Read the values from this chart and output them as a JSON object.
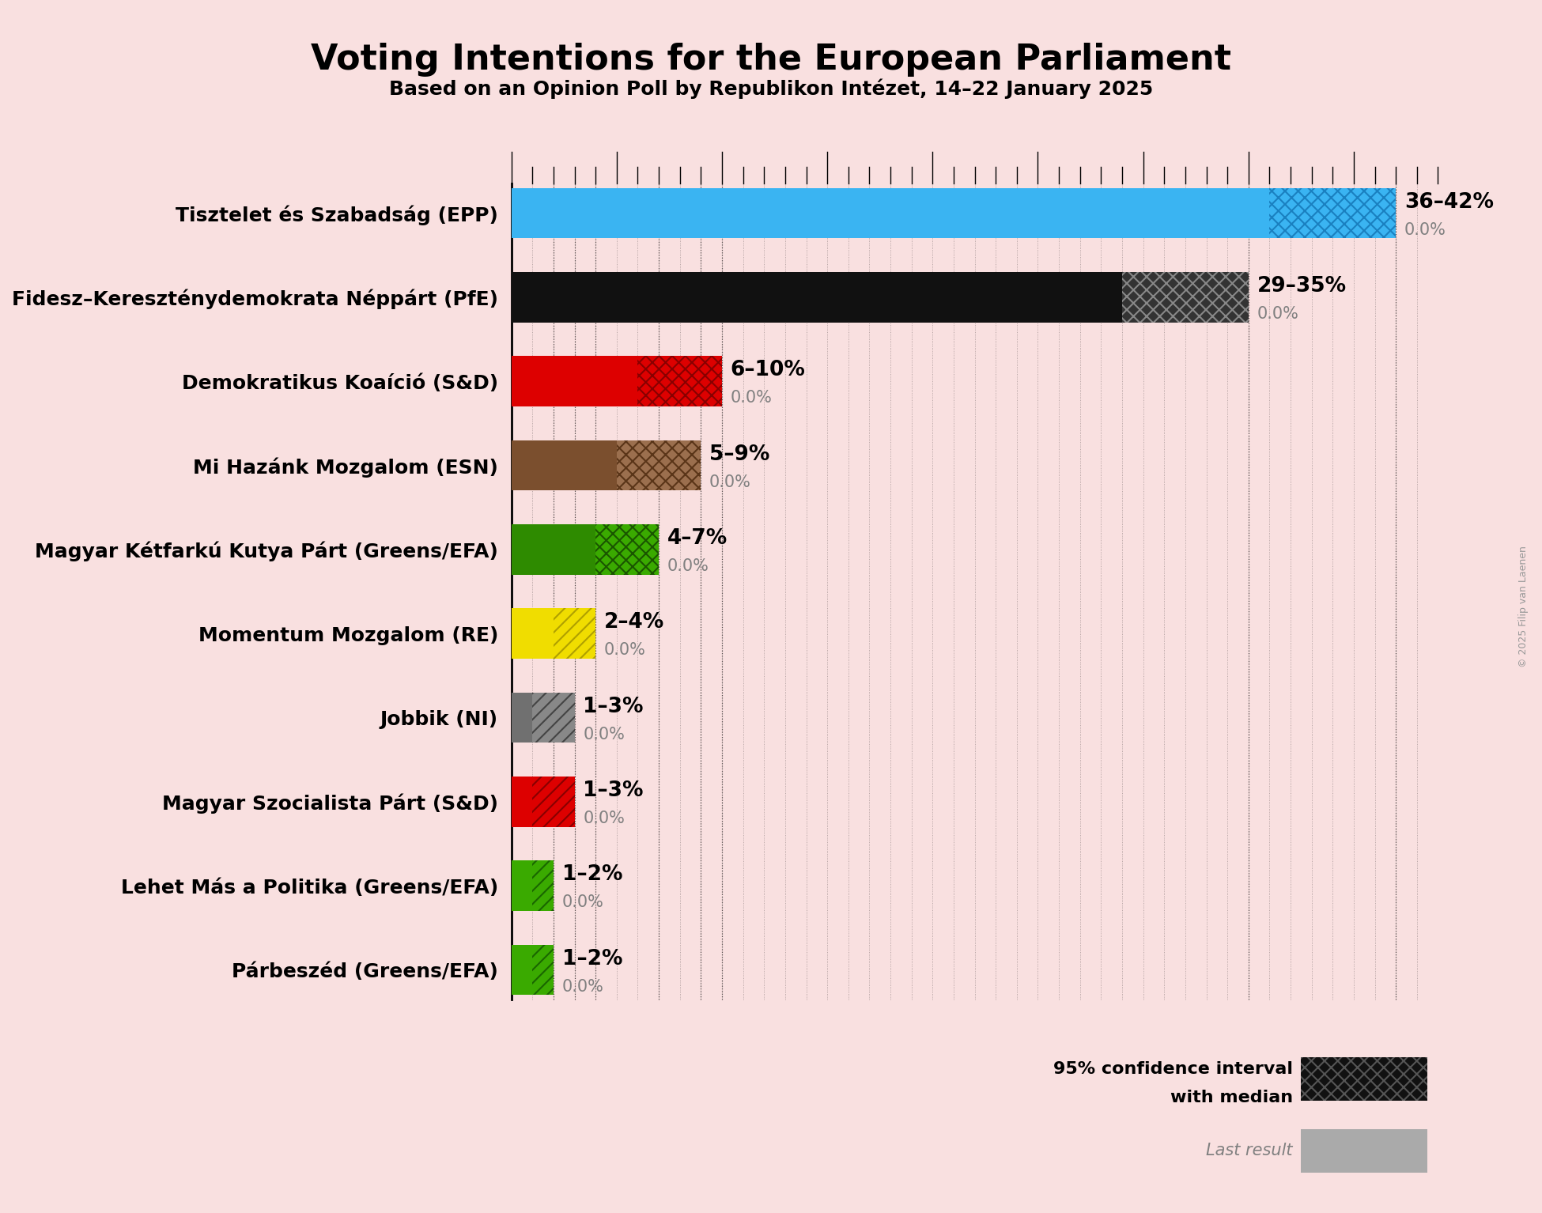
{
  "title": "Voting Intentions for the European Parliament",
  "subtitle": "Based on an Opinion Poll by Republikon Intézet, 14–22 January 2025",
  "background_color": "#f9e0e0",
  "parties": [
    {
      "name": "Tisztelet és Szabadság (EPP)",
      "median": 39,
      "ci_low": 36,
      "ci_high": 42,
      "last": 0.0,
      "color": "#3ab4f2",
      "hatch": "xx",
      "hatch_facecolor": "#3ab4f2",
      "hatch_edgecolor": "#1a80c0",
      "label": "36–42%"
    },
    {
      "name": "Fidesz–Kereszténydemokrata Néppárt (PfE)",
      "median": 32,
      "ci_low": 29,
      "ci_high": 35,
      "last": 0.0,
      "color": "#111111",
      "hatch": "xx",
      "hatch_facecolor": "#333333",
      "hatch_edgecolor": "#888888",
      "label": "29–35%"
    },
    {
      "name": "Demokratikus Koaíció (S&D)",
      "median": 6,
      "ci_low": 6,
      "ci_high": 10,
      "last": 0.0,
      "color": "#dd0000",
      "hatch": "xx",
      "hatch_facecolor": "#dd0000",
      "hatch_edgecolor": "#880000",
      "label": "6–10%"
    },
    {
      "name": "Mi Hazánk Mozgalom (ESN)",
      "median": 5,
      "ci_low": 5,
      "ci_high": 9,
      "last": 0.0,
      "color": "#7b4f2e",
      "hatch": "xx",
      "hatch_facecolor": "#9b6f4e",
      "hatch_edgecolor": "#5a3518",
      "label": "5–9%"
    },
    {
      "name": "Magyar Kétfarkú Kutya Párt (Greens/EFA)",
      "median": 4,
      "ci_low": 4,
      "ci_high": 7,
      "last": 0.0,
      "color": "#2e8b00",
      "hatch": "xx",
      "hatch_facecolor": "#3aaa00",
      "hatch_edgecolor": "#1a5500",
      "label": "4–7%"
    },
    {
      "name": "Momentum Mozgalom (RE)",
      "median": 2,
      "ci_low": 2,
      "ci_high": 4,
      "last": 0.0,
      "color": "#f0dd00",
      "hatch": "//",
      "hatch_facecolor": "#f0dd00",
      "hatch_edgecolor": "#b0a000",
      "label": "2–4%"
    },
    {
      "name": "Jobbik (NI)",
      "median": 1,
      "ci_low": 1,
      "ci_high": 3,
      "last": 0.0,
      "color": "#707070",
      "hatch": "//",
      "hatch_facecolor": "#888888",
      "hatch_edgecolor": "#444444",
      "label": "1–3%"
    },
    {
      "name": "Magyar Szocialista Párt (S&D)",
      "median": 1,
      "ci_low": 1,
      "ci_high": 3,
      "last": 0.0,
      "color": "#dd0000",
      "hatch": "//",
      "hatch_facecolor": "#dd0000",
      "hatch_edgecolor": "#880000",
      "label": "1–3%"
    },
    {
      "name": "Lehet Más a Politika (Greens/EFA)",
      "median": 1,
      "ci_low": 1,
      "ci_high": 2,
      "last": 0.0,
      "color": "#3aaa00",
      "hatch": "//",
      "hatch_facecolor": "#3aaa00",
      "hatch_edgecolor": "#1a6600",
      "label": "1–2%"
    },
    {
      "name": "Párbeszéd (Greens/EFA)",
      "median": 1,
      "ci_low": 1,
      "ci_high": 2,
      "last": 0.0,
      "color": "#3aaa00",
      "hatch": "//",
      "hatch_facecolor": "#3aaa00",
      "hatch_edgecolor": "#1a6600",
      "label": "1–2%"
    }
  ],
  "xlim": [
    0,
    44
  ],
  "legend_text1": "95% confidence interval",
  "legend_text2": "with median",
  "legend_text3": "Last result",
  "copyright": "© 2025 Filip van Laenen"
}
